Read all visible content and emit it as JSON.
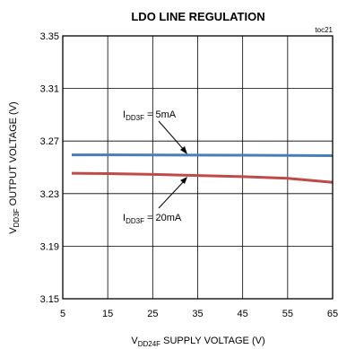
{
  "chart_data": {
    "type": "line",
    "title": "LDO LINE REGULATION",
    "figure_id": "toc21",
    "xlabel": {
      "main": "V",
      "sub": "DD24F",
      "rest": " SUPPLY VOLTAGE (V)"
    },
    "ylabel": {
      "main": "V",
      "sub": "DD3F",
      "rest": " OUTPUT VOLTAGE (V)"
    },
    "xlim": [
      5,
      65
    ],
    "ylim": [
      3.15,
      3.35
    ],
    "xticks": [
      5,
      15,
      25,
      35,
      45,
      55,
      65
    ],
    "yticks": [
      3.15,
      3.19,
      3.23,
      3.27,
      3.31,
      3.35
    ],
    "ytick_labels": [
      "3.15",
      "3.19",
      "3.23",
      "3.27",
      "3.31",
      "3.35"
    ],
    "grid": true,
    "series": [
      {
        "label": {
          "main": "I",
          "sub": "DD3F",
          "rest": " = 5mA"
        },
        "color": "#4a7ebb",
        "x": [
          7,
          15,
          25,
          35,
          45,
          55,
          65
        ],
        "y": [
          3.2595,
          3.2595,
          3.2594,
          3.2593,
          3.2592,
          3.2591,
          3.2589
        ]
      },
      {
        "label": {
          "main": "I",
          "sub": "DD3F",
          "rest": " = 20mA"
        },
        "color": "#be4b48",
        "x": [
          7,
          15,
          25,
          35,
          45,
          55,
          65
        ],
        "y": [
          3.2455,
          3.2452,
          3.2446,
          3.2438,
          3.2429,
          3.2417,
          3.2385
        ]
      }
    ]
  }
}
